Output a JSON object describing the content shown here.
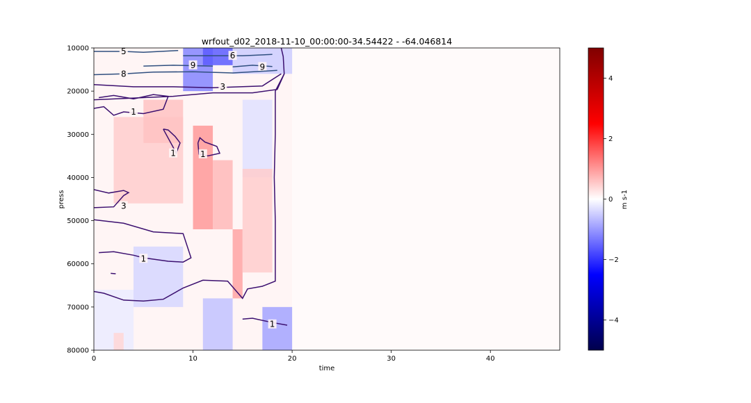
{
  "chart_data": {
    "type": "heatmap",
    "title": "wrfout_d02_2018-11-10_00:00:00-34.54422 - -64.046814",
    "xlabel": "time",
    "ylabel": "press",
    "xlim": [
      0,
      47
    ],
    "ylim": [
      80000,
      10000
    ],
    "x_ticks": [
      0,
      10,
      20,
      30,
      40
    ],
    "x_tick_labels": [
      "0",
      "10",
      "20",
      "30",
      "40"
    ],
    "y_ticks": [
      10000,
      20000,
      30000,
      40000,
      50000,
      60000,
      70000,
      80000
    ],
    "y_tick_labels": [
      "10000",
      "20000",
      "30000",
      "40000",
      "50000",
      "60000",
      "70000",
      "80000"
    ],
    "colorbar": {
      "label": "m s-1",
      "range": [
        -5,
        5
      ],
      "colormap": "seismic",
      "ticks": [
        -4,
        -2,
        0,
        2,
        4
      ],
      "tick_labels": [
        "−4",
        "−2",
        "0",
        "2",
        "4"
      ]
    },
    "data_extent_x": [
      0,
      20
    ],
    "background_value": 0,
    "regions": [
      {
        "x": [
          9,
          12
        ],
        "y": [
          10000,
          20000
        ],
        "value": -1.2
      },
      {
        "x": [
          11,
          14
        ],
        "y": [
          10000,
          14000
        ],
        "value": -1.6
      },
      {
        "x": [
          14,
          20
        ],
        "y": [
          10000,
          16000
        ],
        "value": -0.5
      },
      {
        "x": [
          15,
          18
        ],
        "y": [
          22000,
          40000
        ],
        "value": -0.3
      },
      {
        "x": [
          2,
          9
        ],
        "y": [
          26000,
          46000
        ],
        "value": 0.5
      },
      {
        "x": [
          5,
          9
        ],
        "y": [
          22000,
          32000
        ],
        "value": 0.6
      },
      {
        "x": [
          10,
          12
        ],
        "y": [
          28000,
          52000
        ],
        "value": 1.0
      },
      {
        "x": [
          12,
          14
        ],
        "y": [
          36000,
          52000
        ],
        "value": 0.7
      },
      {
        "x": [
          14,
          15
        ],
        "y": [
          52000,
          68000
        ],
        "value": 0.9
      },
      {
        "x": [
          15,
          18
        ],
        "y": [
          38000,
          62000
        ],
        "value": 0.5
      },
      {
        "x": [
          4,
          9
        ],
        "y": [
          56000,
          70000
        ],
        "value": -0.4
      },
      {
        "x": [
          11,
          14
        ],
        "y": [
          68000,
          80000
        ],
        "value": -0.6
      },
      {
        "x": [
          17,
          20
        ],
        "y": [
          70000,
          80000
        ],
        "value": -0.9
      },
      {
        "x": [
          0,
          4
        ],
        "y": [
          66000,
          80000
        ],
        "value": -0.2
      },
      {
        "x": [
          2,
          3
        ],
        "y": [
          76000,
          80000
        ],
        "value": 0.4
      }
    ],
    "contours": [
      {
        "label": "5",
        "label_xy": [
          3,
          10800
        ],
        "points": [
          [
            0,
            10800
          ],
          [
            3,
            10800
          ],
          [
            5,
            11000
          ],
          [
            8.5,
            10600
          ]
        ]
      },
      {
        "label": "6",
        "label_xy": [
          14,
          11800
        ],
        "points": [
          [
            9,
            11800
          ],
          [
            12,
            11800
          ],
          [
            15,
            11800
          ],
          [
            18,
            11500
          ]
        ]
      },
      {
        "label": "9",
        "label_xy": [
          10,
          14000
        ],
        "points": [
          [
            5,
            14200
          ],
          [
            8,
            14000
          ],
          [
            12,
            14200
          ]
        ]
      },
      {
        "label": "9",
        "label_xy": [
          17,
          14400
        ],
        "points": [
          [
            14,
            14400
          ],
          [
            16,
            14000
          ],
          [
            18,
            14300
          ]
        ]
      },
      {
        "label": "8",
        "label_xy": [
          3,
          16000
        ],
        "points": [
          [
            0,
            16200
          ],
          [
            3,
            16000
          ],
          [
            6,
            15600
          ],
          [
            10,
            15500
          ],
          [
            14,
            15800
          ],
          [
            18.5,
            15200
          ]
        ]
      },
      {
        "label": "3",
        "label_xy": [
          13,
          19000
        ],
        "points": [
          [
            0,
            18500
          ],
          [
            4,
            19000
          ],
          [
            8,
            19000
          ],
          [
            12,
            19200
          ],
          [
            17,
            18800
          ],
          [
            18.9,
            16000
          ]
        ]
      },
      {
        "label": "",
        "points": [
          [
            0,
            22000
          ],
          [
            4,
            21600
          ],
          [
            8,
            21200
          ],
          [
            12,
            20400
          ],
          [
            16,
            20400
          ],
          [
            18.5,
            19600
          ],
          [
            19.2,
            16000
          ],
          [
            19.1,
            12000
          ],
          [
            18.9,
            10000
          ]
        ]
      },
      {
        "label": "",
        "points": [
          [
            19.2,
            16000
          ],
          [
            18.3,
            20000
          ],
          [
            18.3,
            30000
          ],
          [
            18.2,
            40000
          ],
          [
            18.3,
            50000
          ],
          [
            18.3,
            60000
          ],
          [
            18.3,
            64000
          ],
          [
            17,
            65200
          ],
          [
            15.5,
            65800
          ],
          [
            15,
            68000
          ],
          [
            13.5,
            64000
          ],
          [
            11,
            63800
          ],
          [
            9,
            65600
          ],
          [
            7,
            68200
          ],
          [
            5,
            68600
          ],
          [
            3,
            68400
          ],
          [
            1,
            66800
          ],
          [
            0,
            66400
          ]
        ]
      },
      {
        "label": "1",
        "label_xy": [
          4,
          24800
        ],
        "points": [
          [
            0,
            24000
          ],
          [
            1,
            23600
          ],
          [
            2,
            25600
          ],
          [
            3,
            24800
          ],
          [
            5,
            25200
          ],
          [
            7,
            24200
          ],
          [
            7.5,
            21200
          ],
          [
            6,
            20800
          ],
          [
            4,
            21800
          ],
          [
            2,
            21000
          ],
          [
            0.5,
            21500
          ]
        ]
      },
      {
        "label": "1",
        "label_xy": [
          8,
          34400
        ],
        "points": [
          [
            7,
            28800
          ],
          [
            8,
            33000
          ],
          [
            8.3,
            34400
          ],
          [
            8.7,
            32000
          ],
          [
            8.2,
            30500
          ],
          [
            7.5,
            29000
          ],
          [
            7,
            28800
          ]
        ]
      },
      {
        "label": "1",
        "label_xy": [
          11,
          34600
        ],
        "points": [
          [
            10.5,
            32000
          ],
          [
            10.6,
            34600
          ],
          [
            11.5,
            35000
          ],
          [
            12.7,
            34400
          ],
          [
            12.4,
            32800
          ],
          [
            11.7,
            32200
          ],
          [
            11.2,
            31800
          ],
          [
            10.7,
            30800
          ],
          [
            10.5,
            32000
          ]
        ]
      },
      {
        "label": "3",
        "label_xy": [
          3,
          46600
        ],
        "points": [
          [
            0,
            42800
          ],
          [
            1.5,
            43600
          ],
          [
            3,
            43000
          ],
          [
            3.5,
            43500
          ],
          [
            3,
            44200
          ],
          [
            2,
            46800
          ],
          [
            0,
            47000
          ]
        ]
      },
      {
        "label": "1",
        "label_xy": [
          5,
          58800
        ],
        "points": [
          [
            0,
            49800
          ],
          [
            3,
            50600
          ],
          [
            6,
            52600
          ],
          [
            9,
            53000
          ],
          [
            9.8,
            58600
          ],
          [
            9,
            59600
          ],
          [
            7.5,
            59400
          ],
          [
            5,
            58600
          ],
          [
            4,
            58000
          ],
          [
            2,
            57200
          ],
          [
            0.5,
            57400
          ]
        ]
      },
      {
        "label": "",
        "points": [
          [
            1.7,
            62200
          ],
          [
            2.2,
            62300
          ]
        ]
      },
      {
        "label": "1",
        "label_xy": [
          18,
          74000
        ],
        "points": [
          [
            15,
            72800
          ],
          [
            16,
            72600
          ],
          [
            18,
            73600
          ],
          [
            19.5,
            74200
          ]
        ]
      }
    ]
  }
}
